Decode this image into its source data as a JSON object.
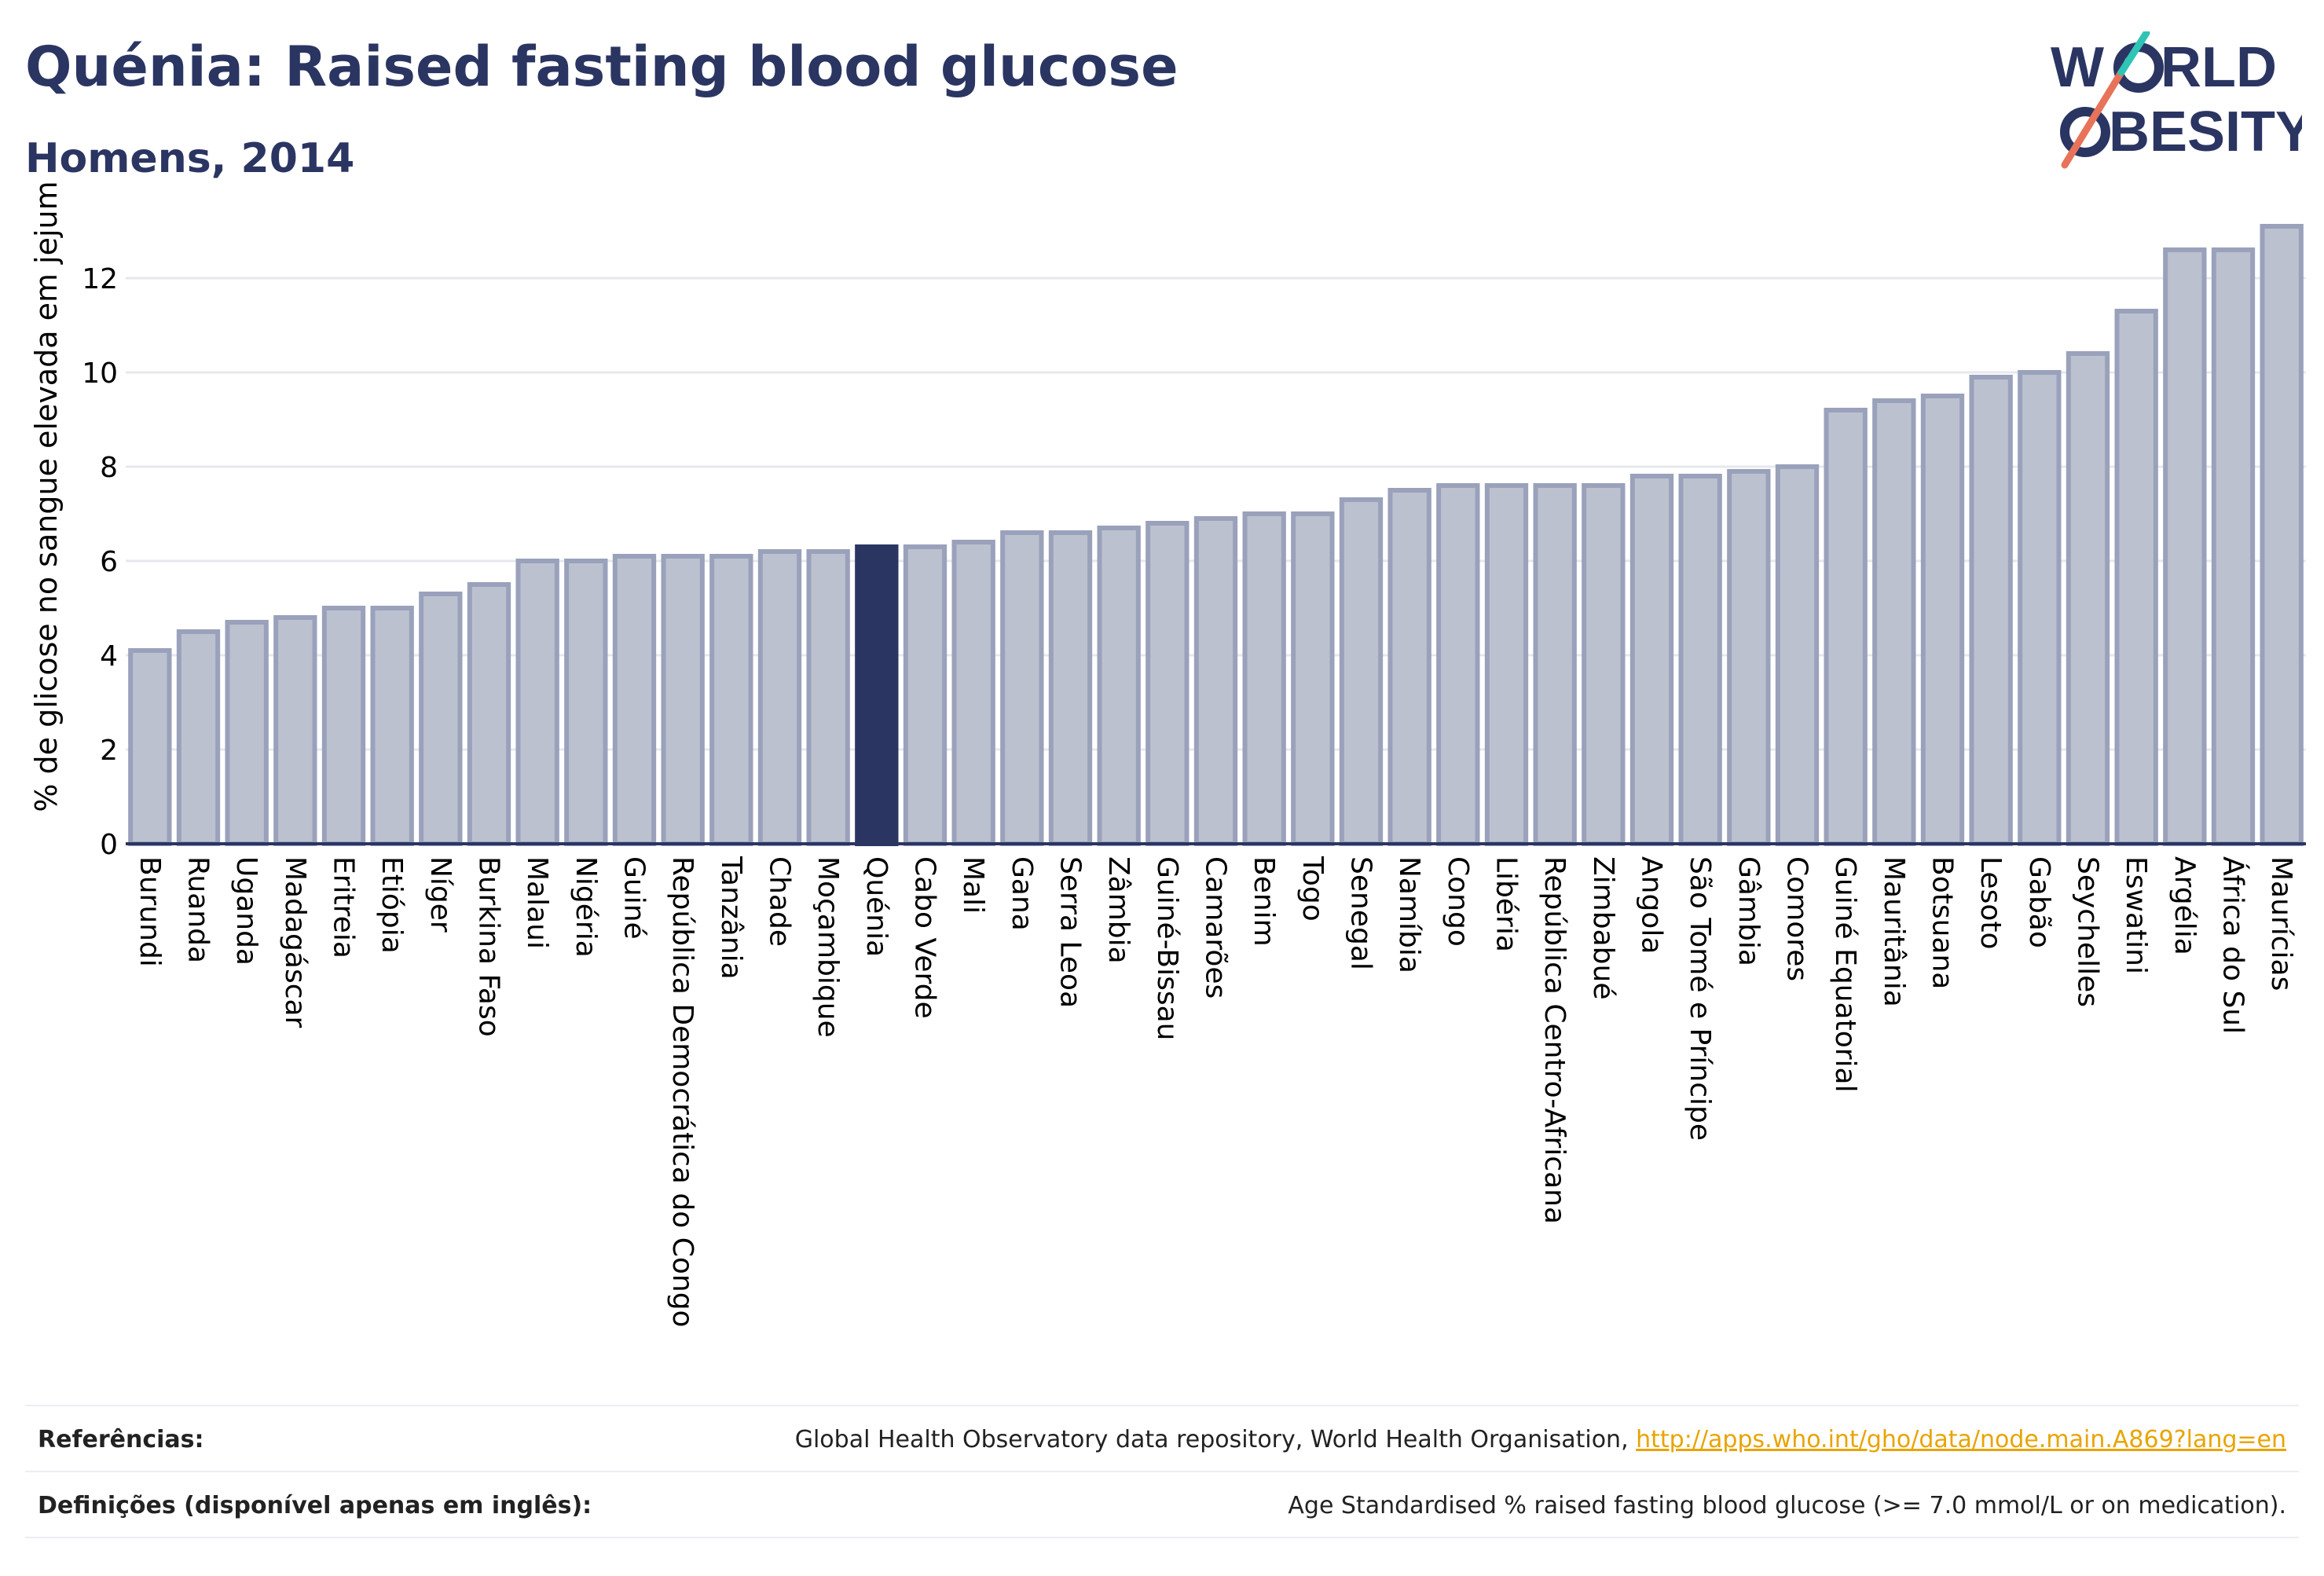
{
  "header": {
    "title": "Quénia: Raised fasting blood glucose",
    "subtitle": "Homens, 2014"
  },
  "logo": {
    "line1": "W  RLD",
    "line2": "BESITY",
    "colors": {
      "text": "#2b3562",
      "teal": "#2ec4b6",
      "coral": "#e8735a"
    }
  },
  "colors": {
    "bar": "#bcc1d0",
    "bar_border": "#9aa1bb",
    "highlight": "#2b3562",
    "grid": "#e6e8ee",
    "axis": "#2b3562"
  },
  "chart_data": {
    "type": "bar",
    "highlight": "Quénia",
    "ylabel": "% de glicose no sangue elevada em jejum",
    "ylim": [
      0,
      13.4
    ],
    "yticks": [
      0,
      2,
      4,
      6,
      8,
      10,
      12
    ],
    "grid": true,
    "categories": [
      "Burundi",
      "Ruanda",
      "Uganda",
      "Madagáscar",
      "Eritreia",
      "Etiópia",
      "Níger",
      "Burkina Faso",
      "Malaui",
      "Nigéria",
      "Guiné",
      "República Democrática do Congo",
      "Tanzânia",
      "Chade",
      "Moçambique",
      "Quénia",
      "Cabo Verde",
      "Mali",
      "Gana",
      "Serra Leoa",
      "Zâmbia",
      "Guiné-Bissau",
      "Camarões",
      "Benim",
      "Togo",
      "Senegal",
      "Namíbia",
      "Congo",
      "Libéria",
      "República Centro-Africana",
      "Zimbabué",
      "Angola",
      "São Tomé e Príncipe",
      "Gâmbia",
      "Comores",
      "Guiné Equatorial",
      "Mauritânia",
      "Botsuana",
      "Lesoto",
      "Gabão",
      "Seychelles",
      "Eswatini",
      "Argélia",
      "África do Sul",
      "Maurícias"
    ],
    "values": [
      4.1,
      4.5,
      4.7,
      4.8,
      5.0,
      5.0,
      5.3,
      5.5,
      6.0,
      6.0,
      6.1,
      6.1,
      6.1,
      6.2,
      6.2,
      6.3,
      6.3,
      6.4,
      6.6,
      6.6,
      6.7,
      6.8,
      6.9,
      7.0,
      7.0,
      7.3,
      7.5,
      7.6,
      7.6,
      7.6,
      7.6,
      7.8,
      7.8,
      7.9,
      8.0,
      9.2,
      9.4,
      9.5,
      9.9,
      10.0,
      10.4,
      11.3,
      12.6,
      12.6,
      13.1
    ]
  },
  "footer": {
    "references_label": "Referências:",
    "references_text": "Global Health Observatory data repository, World Health Organisation, ",
    "references_link": "http://apps.who.int/gho/data/node.main.A869?lang=en",
    "definitions_label": "Definições (disponível apenas em inglês):",
    "definitions_text": "Age Standardised % raised fasting blood glucose (>= 7.0 mmol/L or on medication)."
  }
}
